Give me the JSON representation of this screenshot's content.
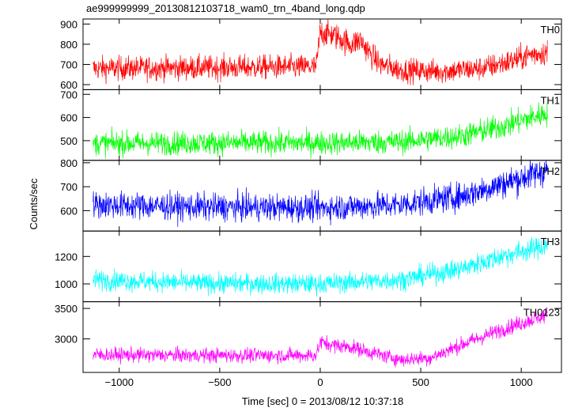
{
  "title": "ae999999999_20130812103718_wam0_trn_4band_long.qdp",
  "ylabel": "Counts/sec",
  "xlabel": "Time [sec] 0 = 2013/08/12 10:37:18",
  "chart_data": {
    "type": "line",
    "title": "ae999999999_20130812103718_wam0_trn_4band_long.qdp",
    "xlabel": "Time [sec] 0 = 2013/08/12 10:37:18",
    "ylabel": "Counts/sec",
    "xlim": [
      -1180,
      1200
    ],
    "x_ticks": [
      -1000,
      -500,
      0,
      500,
      1000
    ],
    "x_tick_labels": [
      "−1000",
      "−500",
      "0",
      "500",
      "1000"
    ],
    "x_range_data": [
      -1130,
      1130
    ],
    "grid": false,
    "panels": [
      {
        "name": "TH0",
        "color": "#ff0000",
        "ylim": [
          575,
          925
        ],
        "y_ticks": [
          600,
          700,
          800,
          900
        ],
        "trend_x": [
          -1130,
          -800,
          -400,
          -20,
          0,
          50,
          100,
          150,
          200,
          250,
          300,
          400,
          600,
          800,
          950,
          1050,
          1130
        ],
        "trend_y": [
          680,
          682,
          685,
          688,
          860,
          850,
          830,
          800,
          820,
          750,
          700,
          672,
          665,
          680,
          715,
          750,
          760
        ]
      },
      {
        "name": "TH1",
        "color": "#00ff00",
        "ylim": [
          415,
          720
        ],
        "y_ticks": [
          500,
          600,
          700
        ],
        "trend_x": [
          -1130,
          -600,
          0,
          400,
          700,
          900,
          1130
        ],
        "trend_y": [
          488,
          490,
          490,
          495,
          520,
          560,
          620
        ]
      },
      {
        "name": "TH2",
        "color": "#0000ff",
        "ylim": [
          515,
          810
        ],
        "y_ticks": [
          600,
          700,
          800
        ],
        "trend_x": [
          -1130,
          -600,
          0,
          400,
          700,
          900,
          1130
        ],
        "trend_y": [
          625,
          615,
          612,
          625,
          660,
          710,
          770
        ]
      },
      {
        "name": "TH3",
        "color": "#00ffff",
        "ylim": [
          870,
          1385
        ],
        "y_ticks": [
          1000,
          1200
        ],
        "trend_x": [
          -1130,
          -600,
          0,
          400,
          700,
          900,
          1130
        ],
        "trend_y": [
          1030,
          1005,
          1000,
          1030,
          1110,
          1200,
          1280
        ]
      },
      {
        "name": "TH0123",
        "color": "#ff00ff",
        "ylim": [
          2450,
          3610
        ],
        "y_ticks": [
          3000,
          3500
        ],
        "trend_x": [
          -1130,
          -600,
          -20,
          0,
          60,
          150,
          250,
          300,
          400,
          550,
          700,
          900,
          1130
        ],
        "trend_y": [
          2740,
          2730,
          2730,
          2950,
          2900,
          2870,
          2780,
          2740,
          2660,
          2690,
          2900,
          3150,
          3400
        ]
      }
    ]
  }
}
